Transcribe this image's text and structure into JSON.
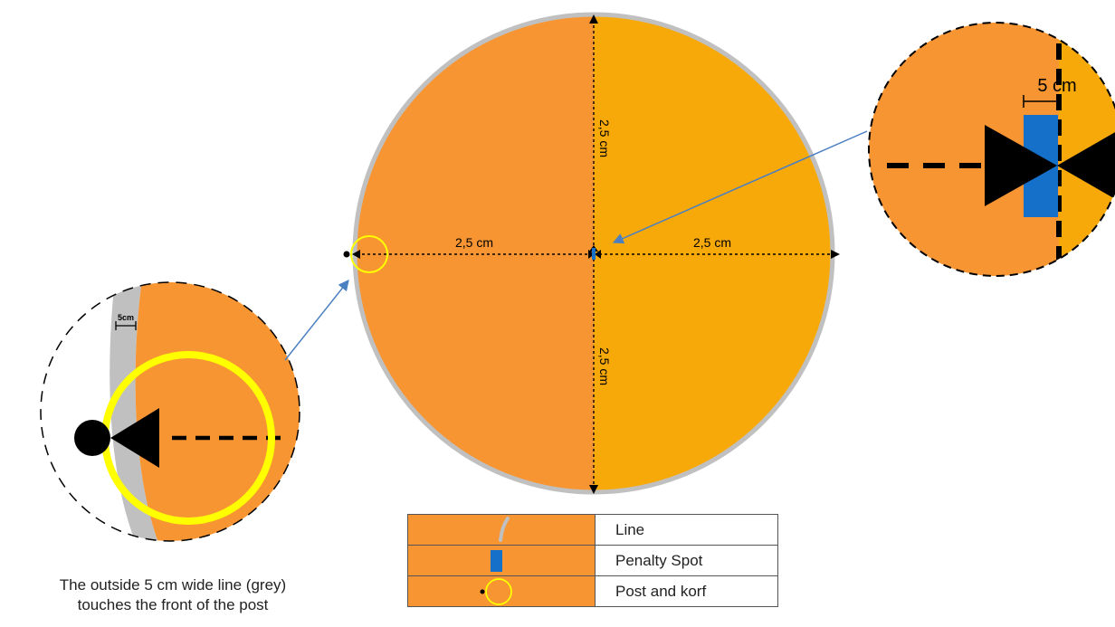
{
  "colors": {
    "court_left": "#f79533",
    "court_right": "#f7a90a",
    "line_grey": "#c0c0c0",
    "penalty_spot": "#1470c8",
    "korf": "#ffff00",
    "arrow_blue": "#4a7fc1",
    "dimension": "#000000"
  },
  "main_circle": {
    "dim_top": "2,5 cm",
    "dim_bottom": "2,5 cm",
    "dim_left": "2,5 cm",
    "dim_right": "2,5 cm"
  },
  "zoom_right": {
    "label": "5 cm"
  },
  "zoom_left": {
    "label": "5cm"
  },
  "caption": {
    "line1": "The outside 5 cm wide line (grey)",
    "line2": "touches the front of the post"
  },
  "legend": {
    "items": [
      {
        "label": "Line",
        "symbol": "grey-line"
      },
      {
        "label": "Penalty Spot",
        "symbol": "penalty-spot"
      },
      {
        "label": "Post and korf",
        "symbol": "post-korf"
      }
    ]
  }
}
